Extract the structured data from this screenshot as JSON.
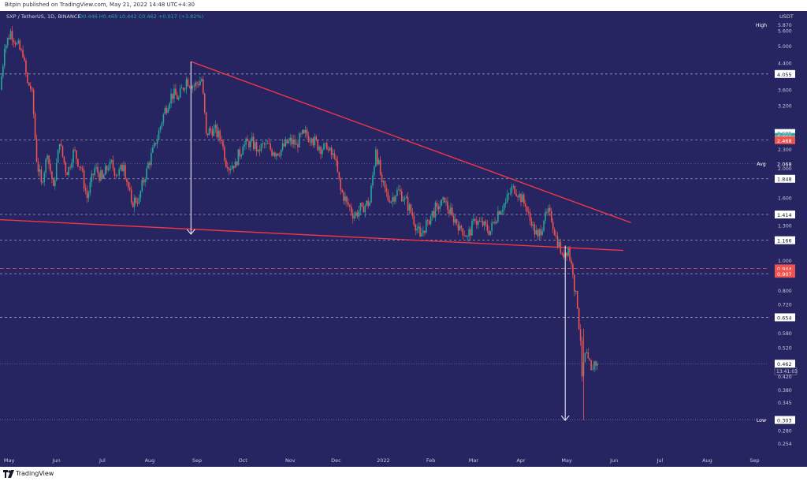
{
  "header": {
    "published": "Bitpin published on TradingView.com, May 21, 2022 14:48 UTC+4:30"
  },
  "footer": {
    "brand": "TradingView"
  },
  "colors": {
    "background": "#262461",
    "up": "#26a69a",
    "down": "#ef5350",
    "trendline": "#f23645",
    "arrow": "#ffffff",
    "grid": "#9fa0c8"
  },
  "chart_data": {
    "type": "candlestick",
    "symbol_line": {
      "symbol": "SXP / TetherUS, 1D, BINANCE",
      "ohlc": "O0.446  H0.469  L0.442  C0.462  +0.017 (+3.82%)"
    },
    "y_scale": "log",
    "y_unit": "USDT",
    "y_range": [
      0.24,
      6.2
    ],
    "x_range": [
      "2021-04-25",
      "2022-09-10"
    ],
    "x_ticks": [
      {
        "label": "May",
        "date": "2021-05-01"
      },
      {
        "label": "Jun",
        "date": "2021-06-01"
      },
      {
        "label": "Jul",
        "date": "2021-07-01"
      },
      {
        "label": "Aug",
        "date": "2021-08-01"
      },
      {
        "label": "Sep",
        "date": "2021-09-01"
      },
      {
        "label": "Oct",
        "date": "2021-10-01"
      },
      {
        "label": "Nov",
        "date": "2021-11-01"
      },
      {
        "label": "Dec",
        "date": "2021-12-01"
      },
      {
        "label": "2022",
        "date": "2022-01-01"
      },
      {
        "label": "Feb",
        "date": "2022-02-01"
      },
      {
        "label": "Mar",
        "date": "2022-03-01"
      },
      {
        "label": "Apr",
        "date": "2022-04-01"
      },
      {
        "label": "May",
        "date": "2022-05-01"
      },
      {
        "label": "Jun",
        "date": "2022-06-01"
      },
      {
        "label": "Jul",
        "date": "2022-07-01"
      },
      {
        "label": "Aug",
        "date": "2022-08-01"
      },
      {
        "label": "Sep",
        "date": "2022-09-01"
      }
    ],
    "y_ticks": [
      5.87,
      5.6,
      5.0,
      4.4,
      3.6,
      3.2,
      2.6,
      2.3,
      2.0,
      1.6,
      1.3,
      1.0,
      0.8,
      0.72,
      0.58,
      0.52,
      0.42,
      0.38,
      0.345,
      0.28,
      0.254
    ],
    "y_tick_labels": [
      "5.870",
      "5.600",
      "5.000",
      "4.400",
      "3.600",
      "3.200",
      "2.600",
      "2.300",
      "2.000",
      "1.600",
      "1.300",
      "1.000",
      "0.800",
      "0.720",
      "0.580",
      "0.520",
      "0.420",
      "0.380",
      "0.345",
      "0.280",
      "0.254"
    ],
    "price_lines": [
      {
        "label": "4.055",
        "value": 4.055,
        "style": "dashed",
        "color": "#ffffff"
      },
      {
        "label": "2.605",
        "value": 2.605,
        "style": "label",
        "color": "#ffffff"
      },
      {
        "label": "2.529",
        "value": 2.529,
        "style": "label",
        "color": "#26a69a"
      },
      {
        "label": "2.474",
        "value": 2.474,
        "style": "dashed",
        "color": "#ffffff"
      },
      {
        "label": "2.468",
        "value": 2.468,
        "style": "label",
        "color": "#ef5350"
      },
      {
        "label": "2.068",
        "value": 2.068,
        "style": "dotted",
        "color": "#262461"
      },
      {
        "label": "1.848",
        "value": 1.848,
        "style": "dashed",
        "color": "#ffffff"
      },
      {
        "label": "1.414",
        "value": 1.414,
        "style": "dashed",
        "color": "#ffffff"
      },
      {
        "label": "1.166",
        "value": 1.166,
        "style": "dashed",
        "color": "#ffffff"
      },
      {
        "label": "0.944",
        "value": 0.944,
        "style": "dashed-red",
        "color": "#ef5350"
      },
      {
        "label": "0.907",
        "value": 0.907,
        "style": "dashed",
        "color": "#ef5350"
      },
      {
        "label": "0.654",
        "value": 0.654,
        "style": "dashed",
        "color": "#ffffff"
      },
      {
        "label": "0.462",
        "value": 0.462,
        "style": "dotted",
        "color": "#ffffff",
        "sublabel": "13:41:03"
      },
      {
        "label": "0.303",
        "value": 0.303,
        "style": "dotted",
        "color": "#ffffff"
      }
    ],
    "side_labels": [
      {
        "label": "High",
        "value": 5.87
      },
      {
        "label": "Avg",
        "value": 2.068
      },
      {
        "label": "Low",
        "value": 0.303
      }
    ],
    "trendlines": [
      {
        "from": {
          "date": "2021-08-28",
          "price": 4.45
        },
        "to": {
          "date": "2022-06-12",
          "price": 1.33
        }
      },
      {
        "from": {
          "date": "2021-04-25",
          "price": 1.36
        },
        "to": {
          "date": "2022-06-07",
          "price": 1.08
        }
      }
    ],
    "arrows": [
      {
        "date": "2021-08-28",
        "from_price": 4.45,
        "to_price": 1.22
      },
      {
        "date": "2022-04-30",
        "from_price": 1.12,
        "to_price": 0.302
      }
    ],
    "series": [
      {
        "date": "2021-04-25",
        "close": 3.6
      },
      {
        "date": "2021-04-28",
        "close": 4.9
      },
      {
        "date": "2021-05-02",
        "close": 5.6
      },
      {
        "date": "2021-05-06",
        "close": 5.1
      },
      {
        "date": "2021-05-10",
        "close": 4.6
      },
      {
        "date": "2021-05-13",
        "close": 3.8
      },
      {
        "date": "2021-05-16",
        "close": 3.6
      },
      {
        "date": "2021-05-19",
        "close": 2.1
      },
      {
        "date": "2021-05-22",
        "close": 1.8
      },
      {
        "date": "2021-05-26",
        "close": 2.2
      },
      {
        "date": "2021-05-30",
        "close": 1.75
      },
      {
        "date": "2021-06-03",
        "close": 2.4
      },
      {
        "date": "2021-06-08",
        "close": 1.9
      },
      {
        "date": "2021-06-12",
        "close": 2.3
      },
      {
        "date": "2021-06-17",
        "close": 2.0
      },
      {
        "date": "2021-06-21",
        "close": 1.6
      },
      {
        "date": "2021-06-26",
        "close": 2.0
      },
      {
        "date": "2021-07-01",
        "close": 1.85
      },
      {
        "date": "2021-07-06",
        "close": 2.1
      },
      {
        "date": "2021-07-11",
        "close": 1.9
      },
      {
        "date": "2021-07-15",
        "close": 2.05
      },
      {
        "date": "2021-07-20",
        "close": 1.55
      },
      {
        "date": "2021-07-25",
        "close": 1.6
      },
      {
        "date": "2021-07-30",
        "close": 2.0
      },
      {
        "date": "2021-08-05",
        "close": 2.4
      },
      {
        "date": "2021-08-10",
        "close": 3.0
      },
      {
        "date": "2021-08-15",
        "close": 3.5
      },
      {
        "date": "2021-08-20",
        "close": 3.4
      },
      {
        "date": "2021-08-25",
        "close": 3.9
      },
      {
        "date": "2021-08-30",
        "close": 3.7
      },
      {
        "date": "2021-09-04",
        "close": 3.9
      },
      {
        "date": "2021-09-07",
        "close": 2.6
      },
      {
        "date": "2021-09-12",
        "close": 2.7
      },
      {
        "date": "2021-09-17",
        "close": 2.45
      },
      {
        "date": "2021-09-21",
        "close": 2.0
      },
      {
        "date": "2021-09-26",
        "close": 2.1
      },
      {
        "date": "2021-10-01",
        "close": 2.35
      },
      {
        "date": "2021-10-06",
        "close": 2.45
      },
      {
        "date": "2021-10-11",
        "close": 2.3
      },
      {
        "date": "2021-10-16",
        "close": 2.4
      },
      {
        "date": "2021-10-21",
        "close": 2.25
      },
      {
        "date": "2021-10-26",
        "close": 2.3
      },
      {
        "date": "2021-10-31",
        "close": 2.45
      },
      {
        "date": "2021-11-05",
        "close": 2.4
      },
      {
        "date": "2021-11-10",
        "close": 2.6
      },
      {
        "date": "2021-11-15",
        "close": 2.5
      },
      {
        "date": "2021-11-20",
        "close": 2.35
      },
      {
        "date": "2021-11-25",
        "close": 2.3
      },
      {
        "date": "2021-11-30",
        "close": 2.15
      },
      {
        "date": "2021-12-04",
        "close": 1.7
      },
      {
        "date": "2021-12-08",
        "close": 1.55
      },
      {
        "date": "2021-12-13",
        "close": 1.4
      },
      {
        "date": "2021-12-18",
        "close": 1.5
      },
      {
        "date": "2021-12-23",
        "close": 1.55
      },
      {
        "date": "2021-12-27",
        "close": 2.3
      },
      {
        "date": "2021-12-31",
        "close": 1.8
      },
      {
        "date": "2022-01-05",
        "close": 1.55
      },
      {
        "date": "2022-01-10",
        "close": 1.7
      },
      {
        "date": "2022-01-15",
        "close": 1.6
      },
      {
        "date": "2022-01-20",
        "close": 1.4
      },
      {
        "date": "2022-01-25",
        "close": 1.2
      },
      {
        "date": "2022-01-30",
        "close": 1.35
      },
      {
        "date": "2022-02-05",
        "close": 1.5
      },
      {
        "date": "2022-02-10",
        "close": 1.55
      },
      {
        "date": "2022-02-15",
        "close": 1.4
      },
      {
        "date": "2022-02-20",
        "close": 1.3
      },
      {
        "date": "2022-02-25",
        "close": 1.2
      },
      {
        "date": "2022-03-02",
        "close": 1.35
      },
      {
        "date": "2022-03-07",
        "close": 1.3
      },
      {
        "date": "2022-03-12",
        "close": 1.25
      },
      {
        "date": "2022-03-17",
        "close": 1.45
      },
      {
        "date": "2022-03-22",
        "close": 1.55
      },
      {
        "date": "2022-03-27",
        "close": 1.75
      },
      {
        "date": "2022-03-31",
        "close": 1.65
      },
      {
        "date": "2022-04-04",
        "close": 1.5
      },
      {
        "date": "2022-04-08",
        "close": 1.3
      },
      {
        "date": "2022-04-12",
        "close": 1.2
      },
      {
        "date": "2022-04-16",
        "close": 1.35
      },
      {
        "date": "2022-04-20",
        "close": 1.45
      },
      {
        "date": "2022-04-24",
        "close": 1.2
      },
      {
        "date": "2022-04-28",
        "close": 1.05
      },
      {
        "date": "2022-05-02",
        "close": 1.1
      },
      {
        "date": "2022-05-05",
        "close": 0.9
      },
      {
        "date": "2022-05-08",
        "close": 0.7
      },
      {
        "date": "2022-05-10",
        "close": 0.55
      },
      {
        "date": "2022-05-11",
        "close": 0.42
      },
      {
        "date": "2022-05-13",
        "close": 0.5
      },
      {
        "date": "2022-05-15",
        "close": 0.48
      },
      {
        "date": "2022-05-17",
        "close": 0.44
      },
      {
        "date": "2022-05-19",
        "close": 0.47
      },
      {
        "date": "2022-05-21",
        "close": 0.462
      }
    ]
  }
}
